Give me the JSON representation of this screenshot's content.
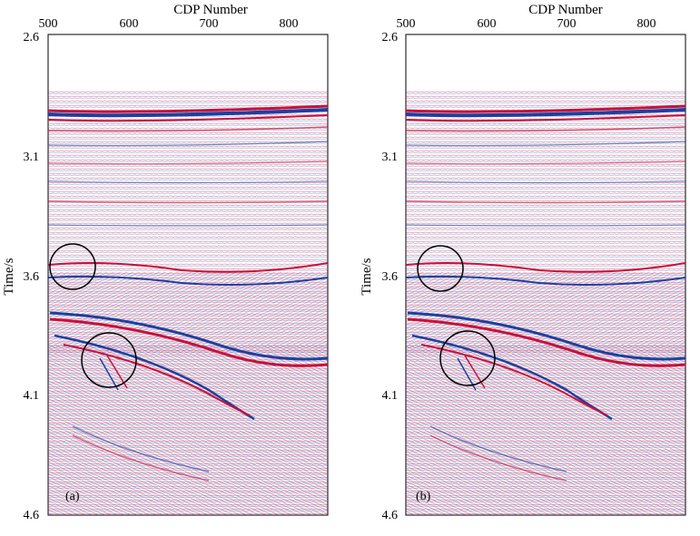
{
  "panels": [
    {
      "id": "a",
      "label": "(a)",
      "top_axis_title": "CDP Number",
      "left_axis_title": "Time/s",
      "x_ticks": [
        "500",
        "600",
        "700",
        "800"
      ],
      "y_ticks": [
        "2.6",
        "3.1",
        "3.6",
        "4.1",
        "4.6"
      ],
      "circles": 2
    },
    {
      "id": "b",
      "label": "(b)",
      "top_axis_title": "CDP Number",
      "left_axis_title": "Time/s",
      "x_ticks": [
        "500",
        "600",
        "700",
        "800"
      ],
      "y_ticks": [
        "2.6",
        "3.1",
        "3.6",
        "4.1",
        "4.6"
      ],
      "circles": 2
    }
  ],
  "colors": {
    "positive": "#c8103c",
    "negative": "#1e3fa0",
    "background": "#ffffff"
  }
}
